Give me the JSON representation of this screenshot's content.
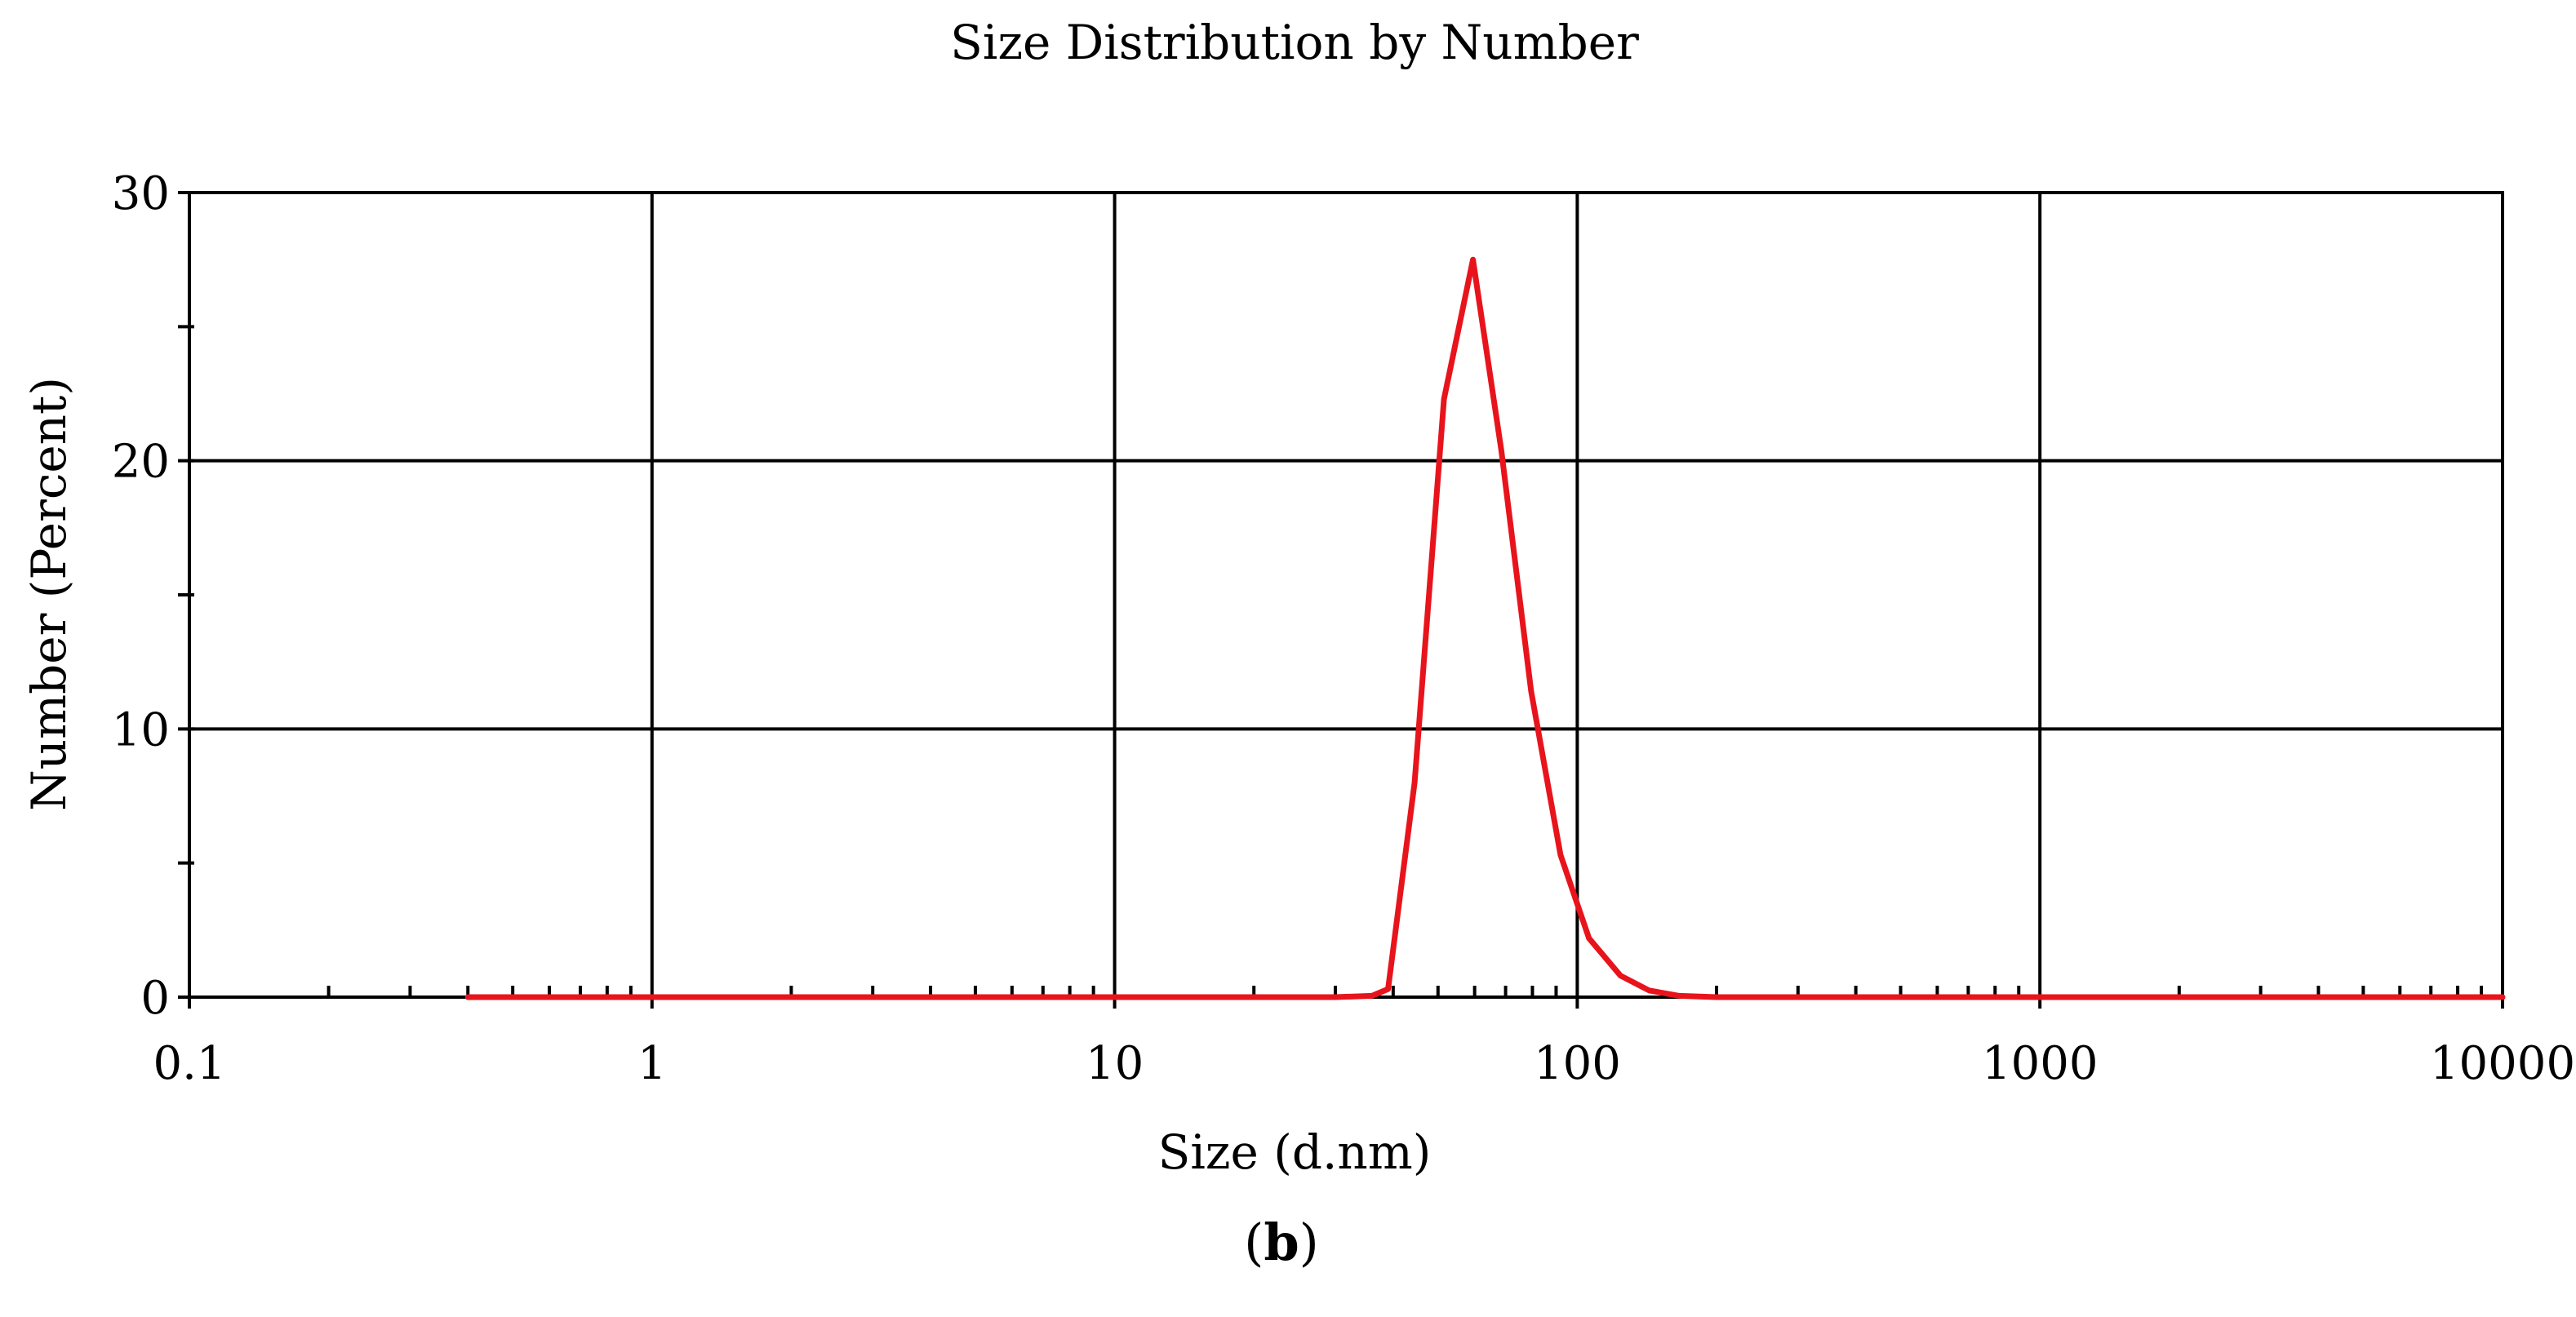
{
  "chart_data": {
    "type": "line",
    "title": "Size Distribution by Number",
    "xlabel": "Size (d.nm)",
    "ylabel": "Number (Percent)",
    "xscale": "log",
    "xlim": [
      0.1,
      10000
    ],
    "ylim": [
      0,
      30
    ],
    "xticks": [
      0.1,
      1,
      10,
      100,
      1000,
      10000
    ],
    "xtick_labels": [
      "0.1",
      "1",
      "10",
      "100",
      "1000",
      "10000"
    ],
    "yticks": [
      0,
      10,
      20,
      30
    ],
    "ytick_labels": [
      "0",
      "10",
      "20",
      "30"
    ],
    "grid": true,
    "series": [
      {
        "color": "#e8141c",
        "x": [
          0.4,
          1,
          10,
          30,
          36,
          39,
          44.5,
          51.5,
          59.5,
          68.5,
          79.5,
          92,
          106,
          124,
          143,
          166,
          200,
          400,
          1000,
          10000
        ],
        "y": [
          0,
          0,
          0,
          0,
          0.05,
          0.3,
          8,
          22.3,
          27.5,
          20.4,
          11.4,
          5.3,
          2.2,
          0.8,
          0.25,
          0.05,
          0,
          0,
          0,
          0
        ]
      }
    ]
  },
  "caption": {
    "open": "(",
    "letter": "b",
    "close": ")"
  }
}
